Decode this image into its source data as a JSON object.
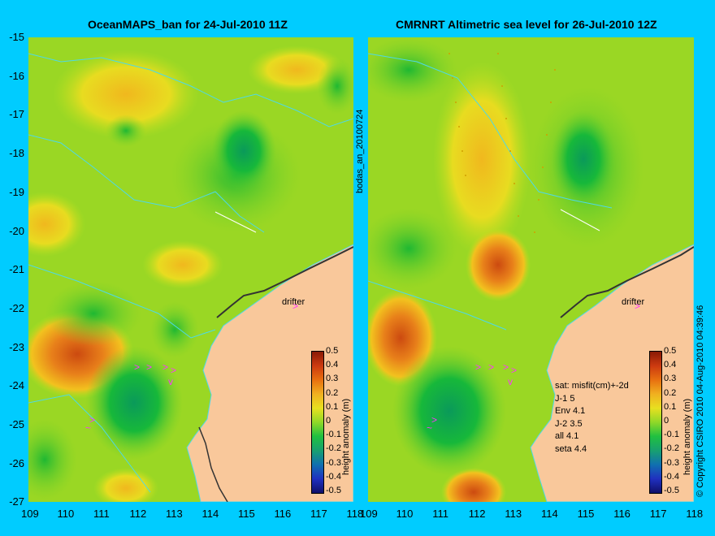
{
  "left_panel": {
    "title": "OceanMAPS_ban for 24-Jul-2010 11Z",
    "drifter_label": "drifter",
    "colorbar_label": "height anomaly (m)"
  },
  "right_panel": {
    "title": "CMRNRT Altimetric sea level  for 26-Jul-2010 12Z",
    "drifter_label": "drifter",
    "colorbar_label": "height anomaly (m)",
    "legend": {
      "header": "sat: misfit(cm)+-2d",
      "rows": [
        "J-1    5",
        "Env   4.1",
        "J-2   3.5",
        "all  4.1",
        "seta  4.4"
      ]
    }
  },
  "y_ticks": [
    "-15",
    "-16",
    "-17",
    "-18",
    "-19",
    "-20",
    "-21",
    "-22",
    "-23",
    "-24",
    "-25",
    "-26",
    "-27"
  ],
  "x_ticks": [
    "109",
    "110",
    "111",
    "112",
    "113",
    "114",
    "115",
    "116",
    "117",
    "118"
  ],
  "colorbar_ticks": [
    "0.5",
    "0.4",
    "0.3",
    "0.2",
    "0.1",
    "0",
    "-0.1",
    "-0.2",
    "-0.3",
    "-0.4",
    "-0.5"
  ],
  "side_label_middle": "bodas_an_20100724",
  "side_label_right": "© Copyright CSIRO 2010   04-Aug-2010 04:39:46",
  "colors": {
    "background": "#00ccff",
    "land": "#f9c89b",
    "coast": "#4dd9e8",
    "drifter": "#ff33ff"
  }
}
